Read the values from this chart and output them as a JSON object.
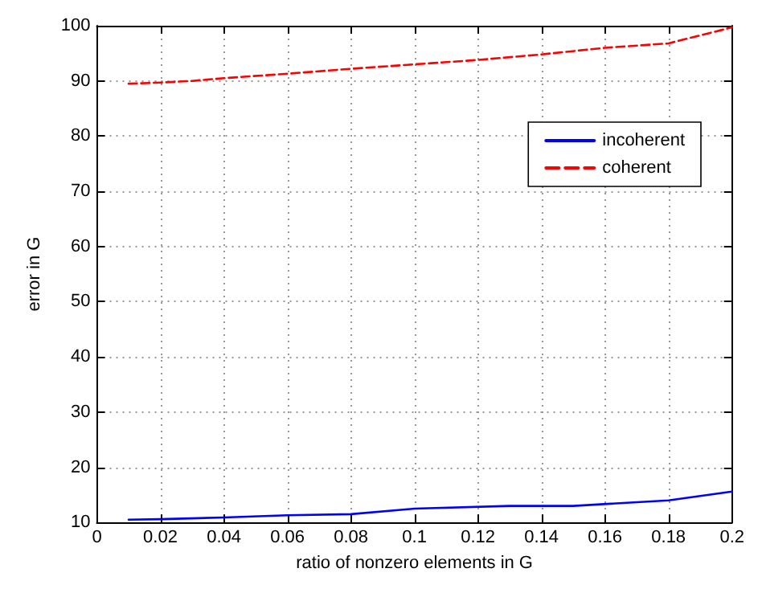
{
  "chart_data": {
    "type": "line",
    "xlabel": "ratio of nonzero elements in G",
    "ylabel": "error in G",
    "xlim": [
      0,
      0.2
    ],
    "xticks": [
      0,
      0.02,
      0.04,
      0.06,
      0.08,
      0.1,
      0.12,
      0.14,
      0.16,
      0.18,
      0.2
    ],
    "ylim": [
      10,
      100
    ],
    "yticks": [
      10,
      20,
      30,
      40,
      50,
      60,
      70,
      80,
      90,
      100
    ],
    "grid": true,
    "legend": "top right",
    "marker": "none",
    "series": [
      {
        "name": "incoherent",
        "color": "#0000ff",
        "line_style": "solid",
        "x": [
          0.01,
          0.02,
          0.04,
          0.06,
          0.08,
          0.1,
          0.13,
          0.15,
          0.18,
          0.2
        ],
        "values": [
          10.5,
          10.6,
          10.9,
          11.3,
          11.5,
          12.5,
          13,
          13,
          14,
          15.6
        ]
      },
      {
        "name": "coherent",
        "color": "#ff0000",
        "line_style": "dashed",
        "x": [
          0.01,
          0.02,
          0.03,
          0.04,
          0.06,
          0.08,
          0.1,
          0.12,
          0.14,
          0.16,
          0.18,
          0.2
        ],
        "values": [
          89.5,
          89.7,
          90,
          90.5,
          91.3,
          92.2,
          93,
          93.8,
          94.8,
          96,
          96.8,
          99.7
        ]
      }
    ]
  }
}
